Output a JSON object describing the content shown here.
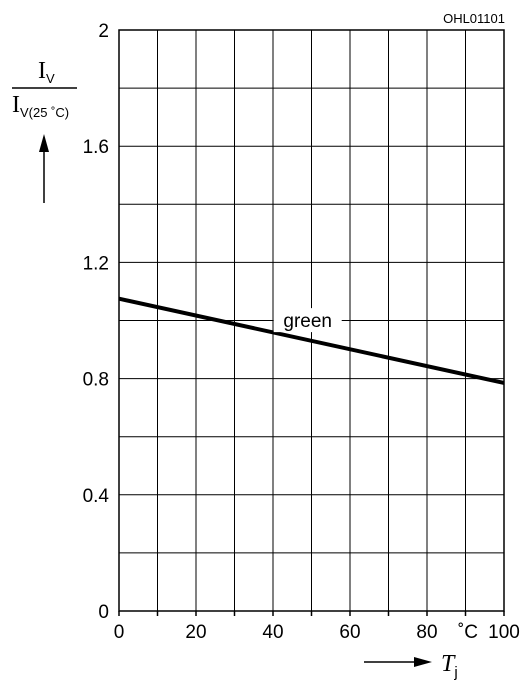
{
  "chart_data": {
    "type": "line",
    "code": "OHL01101",
    "ylabel": {
      "numerator": "I",
      "numerator_sub": "V",
      "denominator": "I",
      "denominator_sub": "V(25 ˚C)"
    },
    "xlabel": {
      "symbol": "T",
      "sub": "j"
    },
    "x_unit": "˚C",
    "xlim": [
      0,
      100
    ],
    "ylim": [
      0,
      2
    ],
    "x_ticks": [
      "0",
      "20",
      "40",
      "60",
      "80",
      "100"
    ],
    "y_ticks": [
      "0",
      "0.4",
      "0.8",
      "1.2",
      "1.6",
      "2"
    ],
    "grid": true,
    "series": [
      {
        "name": "green",
        "color": "#000000",
        "x": [
          0,
          100
        ],
        "y": [
          1.075,
          0.785
        ]
      }
    ]
  }
}
